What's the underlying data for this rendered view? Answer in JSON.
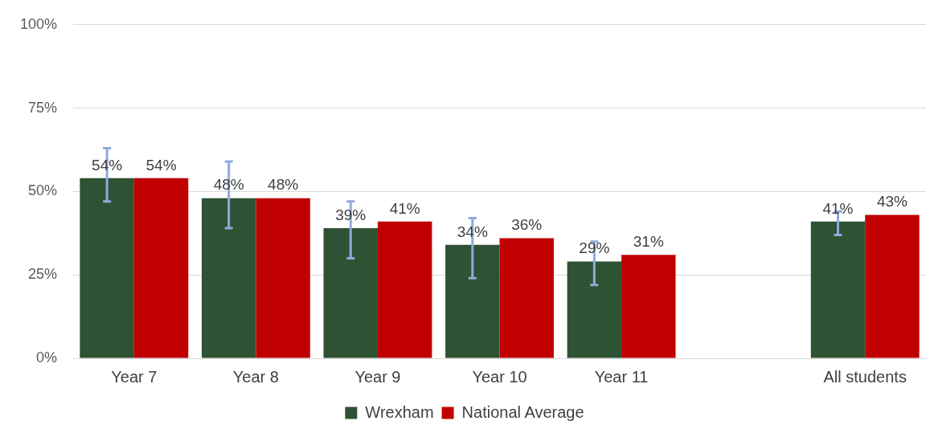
{
  "chart_data": {
    "type": "bar",
    "categories": [
      "Year 7",
      "Year 8",
      "Year 9",
      "Year 10",
      "Year 11",
      null,
      "All students"
    ],
    "series": [
      {
        "name": "Wrexham",
        "color": "#2e5233",
        "values": [
          54,
          48,
          39,
          34,
          29,
          null,
          41
        ],
        "value_labels": [
          "54%",
          "48%",
          "39%",
          "34%",
          "29%",
          null,
          "41%"
        ],
        "errors": [
          [
            47,
            63
          ],
          [
            39,
            59
          ],
          [
            30,
            47
          ],
          [
            24,
            42
          ],
          [
            22,
            35
          ],
          null,
          [
            37,
            44
          ]
        ]
      },
      {
        "name": "National Average",
        "color": "#c00000",
        "values": [
          54,
          48,
          41,
          36,
          31,
          null,
          43
        ],
        "value_labels": [
          "54%",
          "48%",
          "41%",
          "36%",
          "31%",
          null,
          "43%"
        ]
      }
    ],
    "ylim": [
      0,
      100
    ],
    "yticks": [
      {
        "value": 0,
        "label": "0%"
      },
      {
        "value": 25,
        "label": "25%"
      },
      {
        "value": 50,
        "label": "50%"
      },
      {
        "value": 75,
        "label": "75%"
      },
      {
        "value": 100,
        "label": "100%"
      }
    ],
    "grid": "y",
    "legend": "bottom"
  }
}
